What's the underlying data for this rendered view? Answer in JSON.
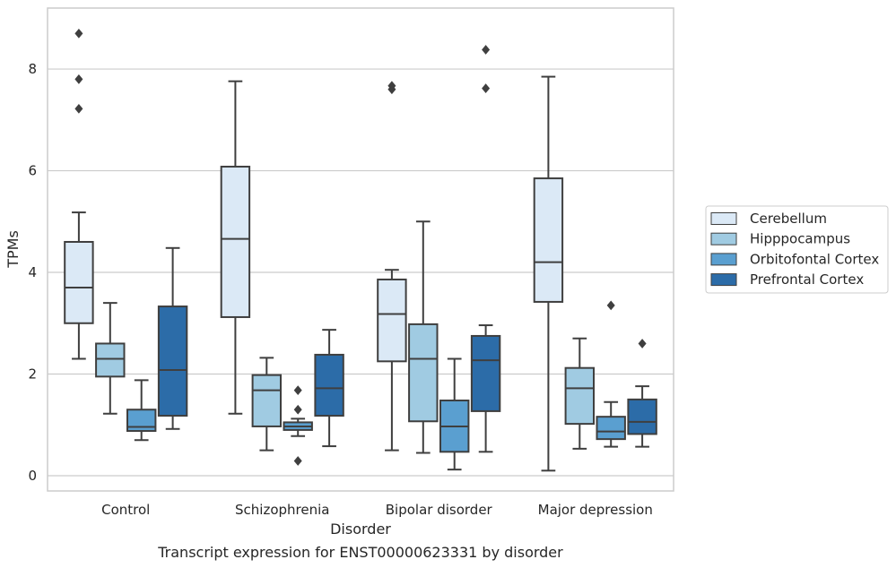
{
  "chart_data": {
    "type": "boxplot",
    "xlabel": "Disorder",
    "ylabel": "TPMs",
    "caption": "Transcript expression for ENST00000623331 by disorder",
    "ylim": [
      -0.3,
      9.2
    ],
    "yticks": [
      0,
      2,
      4,
      6,
      8
    ],
    "grid": "horizontal",
    "legend_position": "right",
    "categories": [
      "Control",
      "Schizophrenia",
      "Bipolar disorder",
      "Major depression"
    ],
    "series": [
      {
        "name": "Cerebellum",
        "color": "#dbe9f6",
        "boxes": [
          {
            "whisker_low": 2.3,
            "q1": 3.0,
            "median": 3.7,
            "q3": 4.6,
            "whisker_high": 5.18,
            "outliers": [
              7.22,
              7.8,
              8.7
            ]
          },
          {
            "whisker_low": 1.22,
            "q1": 3.12,
            "median": 4.66,
            "q3": 6.08,
            "whisker_high": 7.76,
            "outliers": []
          },
          {
            "whisker_low": 0.5,
            "q1": 2.25,
            "median": 3.18,
            "q3": 3.86,
            "whisker_high": 4.05,
            "outliers": [
              7.6,
              7.67
            ]
          },
          {
            "whisker_low": 0.1,
            "q1": 3.42,
            "median": 4.2,
            "q3": 5.85,
            "whisker_high": 7.85,
            "outliers": []
          }
        ]
      },
      {
        "name": "Hipppocampus",
        "color": "#a0cbe2",
        "boxes": [
          {
            "whisker_low": 1.22,
            "q1": 1.95,
            "median": 2.3,
            "q3": 2.6,
            "whisker_high": 3.4,
            "outliers": []
          },
          {
            "whisker_low": 0.5,
            "q1": 0.97,
            "median": 1.68,
            "q3": 1.98,
            "whisker_high": 2.32,
            "outliers": []
          },
          {
            "whisker_low": 0.45,
            "q1": 1.07,
            "median": 2.3,
            "q3": 2.98,
            "whisker_high": 5.0,
            "outliers": []
          },
          {
            "whisker_low": 0.53,
            "q1": 1.02,
            "median": 1.72,
            "q3": 2.12,
            "whisker_high": 2.7,
            "outliers": []
          }
        ]
      },
      {
        "name": "Orbitofontal Cortex",
        "color": "#5a9fd0",
        "boxes": [
          {
            "whisker_low": 0.7,
            "q1": 0.88,
            "median": 0.96,
            "q3": 1.3,
            "whisker_high": 1.88,
            "outliers": []
          },
          {
            "whisker_low": 0.78,
            "q1": 0.9,
            "median": 0.97,
            "q3": 1.05,
            "whisker_high": 1.12,
            "outliers": [
              0.29,
              1.3,
              1.68
            ]
          },
          {
            "whisker_low": 0.12,
            "q1": 0.47,
            "median": 0.97,
            "q3": 1.48,
            "whisker_high": 2.3,
            "outliers": []
          },
          {
            "whisker_low": 0.57,
            "q1": 0.72,
            "median": 0.87,
            "q3": 1.16,
            "whisker_high": 1.45,
            "outliers": [
              3.35
            ]
          }
        ]
      },
      {
        "name": "Prefrontal Cortex",
        "color": "#2c6ca8",
        "boxes": [
          {
            "whisker_low": 0.92,
            "q1": 1.18,
            "median": 2.08,
            "q3": 3.33,
            "whisker_high": 4.48,
            "outliers": []
          },
          {
            "whisker_low": 0.58,
            "q1": 1.18,
            "median": 1.72,
            "q3": 2.38,
            "whisker_high": 2.87,
            "outliers": []
          },
          {
            "whisker_low": 0.47,
            "q1": 1.27,
            "median": 2.27,
            "q3": 2.75,
            "whisker_high": 2.96,
            "outliers": [
              7.62,
              8.38
            ]
          },
          {
            "whisker_low": 0.57,
            "q1": 0.82,
            "median": 1.06,
            "q3": 1.5,
            "whisker_high": 1.76,
            "outliers": [
              2.6
            ]
          }
        ]
      }
    ]
  }
}
